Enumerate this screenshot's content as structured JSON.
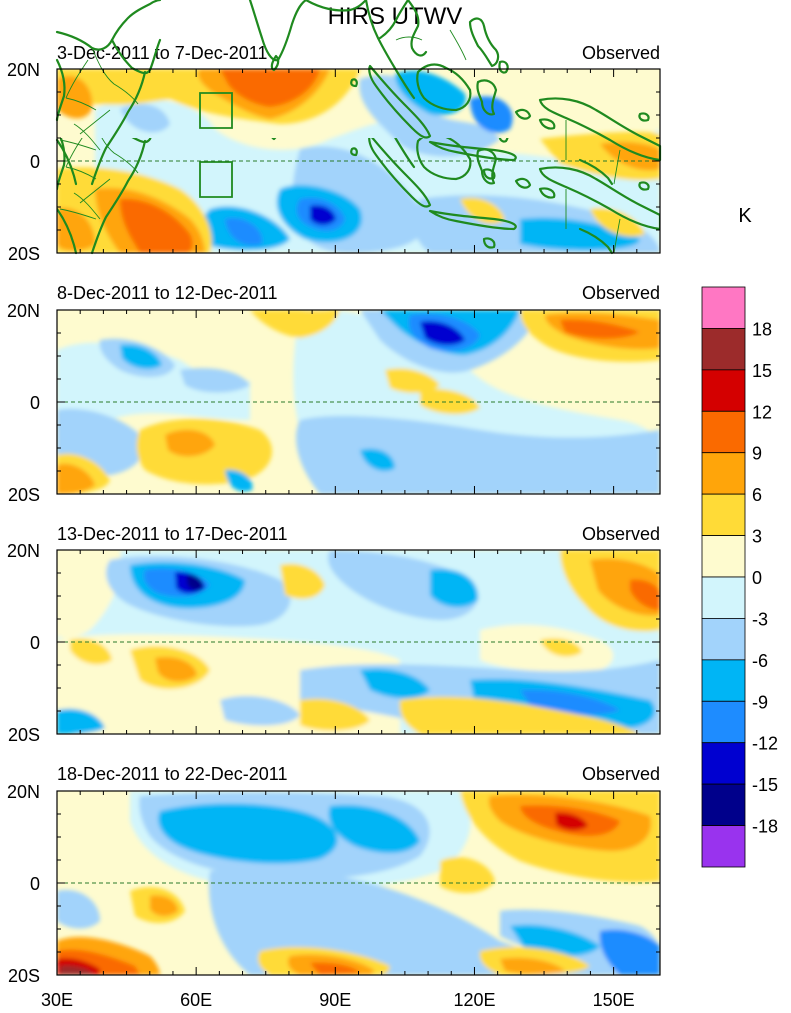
{
  "title": "HIRS UTWV",
  "unit_label": "K",
  "panels": [
    {
      "period": "3-Dec-2011 to 7-Dec-2011",
      "label": "Observed"
    },
    {
      "period": "8-Dec-2011 to 12-Dec-2011",
      "label": "Observed"
    },
    {
      "period": "13-Dec-2011 to 17-Dec-2011",
      "label": "Observed"
    },
    {
      "period": "18-Dec-2011 to 22-Dec-2011",
      "label": "Observed"
    }
  ],
  "lat_labels": [
    "20N",
    "0",
    "20S"
  ],
  "lon_labels": [
    "30E",
    "60E",
    "90E",
    "120E",
    "150E"
  ],
  "colorbar": {
    "labels": [
      "18",
      "15",
      "12",
      "9",
      "6",
      "3",
      "0",
      "-3",
      "-6",
      "-9",
      "-12",
      "-15",
      "-18"
    ],
    "colors": [
      "#ff77c3",
      "#9c2b2b",
      "#d40000",
      "#fa6a00",
      "#ffa50a",
      "#ffdb37",
      "#fefbcf",
      "#d2f5fc",
      "#a2d3fb",
      "#00b5f5",
      "#1e8cff",
      "#0000d0",
      "#00008b",
      "#9933ee"
    ]
  },
  "chart_data": {
    "type": "heatmap",
    "title": "HIRS UTWV",
    "units": "K",
    "levels": [
      -18,
      -15,
      -12,
      -9,
      -6,
      -3,
      0,
      3,
      6,
      9,
      12,
      15,
      18
    ],
    "lon_range": [
      30,
      160
    ],
    "lat_range": [
      -20,
      20
    ],
    "fields": [
      {
        "period": "3-Dec-2011 to 7-Dec-2011",
        "anomalies": [
          {
            "lon": 63,
            "lat": 16,
            "value": 9
          },
          {
            "lon": 78,
            "lat": 17,
            "value": 9
          },
          {
            "lon": 51,
            "lat": -12,
            "value": 9
          },
          {
            "lon": 38,
            "lat": 14,
            "value": 6
          },
          {
            "lon": 150,
            "lat": 0,
            "value": 6
          },
          {
            "lon": 87,
            "lat": -11,
            "value": -15
          },
          {
            "lon": 71,
            "lat": -17,
            "value": -9
          },
          {
            "lon": 117,
            "lat": 14,
            "value": -6
          },
          {
            "lon": 126,
            "lat": 8,
            "value": -6
          },
          {
            "lon": 60,
            "lat": 6,
            "value": -6
          },
          {
            "lon": 110,
            "lat": -8,
            "value": -3
          },
          {
            "lon": 140,
            "lat": -14,
            "value": 3
          }
        ]
      },
      {
        "period": "8-Dec-2011 to 12-Dec-2011",
        "anomalies": [
          {
            "lon": 119,
            "lat": 14,
            "value": -12
          },
          {
            "lon": 146,
            "lat": 16,
            "value": 9
          },
          {
            "lon": 52,
            "lat": 9,
            "value": -6
          },
          {
            "lon": 58,
            "lat": -10,
            "value": 6
          },
          {
            "lon": 80,
            "lat": -6,
            "value": 3
          },
          {
            "lon": 35,
            "lat": -16,
            "value": 6
          },
          {
            "lon": 103,
            "lat": -6,
            "value": -3
          },
          {
            "lon": 140,
            "lat": 4,
            "value": -3
          },
          {
            "lon": 70,
            "lat": 6,
            "value": -3
          },
          {
            "lon": 110,
            "lat": 2,
            "value": 3
          }
        ]
      },
      {
        "period": "13-Dec-2011 to 17-Dec-2011",
        "anomalies": [
          {
            "lon": 60,
            "lat": 12,
            "value": -15
          },
          {
            "lon": 62,
            "lat": 12,
            "value": -9
          },
          {
            "lon": 155,
            "lat": 11,
            "value": 9
          },
          {
            "lon": 57,
            "lat": -7,
            "value": 6
          },
          {
            "lon": 110,
            "lat": -17,
            "value": 6
          },
          {
            "lon": 90,
            "lat": -16,
            "value": 3
          },
          {
            "lon": 117,
            "lat": 6,
            "value": -6
          },
          {
            "lon": 140,
            "lat": -12,
            "value": -9
          },
          {
            "lon": 100,
            "lat": -9,
            "value": -9
          },
          {
            "lon": 85,
            "lat": 12,
            "value": 3
          }
        ]
      },
      {
        "period": "18-Dec-2011 to 22-Dec-2011",
        "anomalies": [
          {
            "lon": 143,
            "lat": 14,
            "value": 12
          },
          {
            "lon": 141,
            "lat": 13,
            "value": 9
          },
          {
            "lon": 40,
            "lat": -19,
            "value": 15
          },
          {
            "lon": 45,
            "lat": -19,
            "value": 12
          },
          {
            "lon": 72,
            "lat": 13,
            "value": -9
          },
          {
            "lon": 90,
            "lat": 12,
            "value": -9
          },
          {
            "lon": 108,
            "lat": 10,
            "value": -9
          },
          {
            "lon": 55,
            "lat": -7,
            "value": 6
          },
          {
            "lon": 90,
            "lat": -18,
            "value": 9
          },
          {
            "lon": 130,
            "lat": -16,
            "value": 6
          },
          {
            "lon": 150,
            "lat": -13,
            "value": -12
          },
          {
            "lon": 122,
            "lat": 3,
            "value": 3
          }
        ]
      }
    ]
  }
}
